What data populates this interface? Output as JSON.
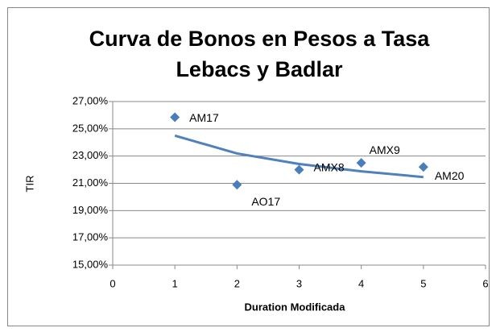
{
  "chart_data": {
    "type": "scatter",
    "title_lines": [
      "Curva de Bonos en Pesos a Tasa",
      "Lebacs y Badlar"
    ],
    "x_label": "Duration Modificada",
    "y_label": "TIR",
    "x": [
      1,
      2,
      3,
      4,
      5
    ],
    "values": [
      25.85,
      20.9,
      22.0,
      22.5,
      22.2
    ],
    "labels": [
      "AM17",
      "AO17",
      "AMX8",
      "AMX9",
      "AM20"
    ],
    "color": "#4a7ebb",
    "trendline": {
      "x": [
        1,
        2,
        3,
        4,
        5
      ],
      "values": [
        24.5,
        23.19,
        22.42,
        21.88,
        21.46
      ],
      "color": "#4f81bd"
    },
    "xlim": [
      0,
      6
    ],
    "xticks": [
      0,
      1,
      2,
      3,
      4,
      5,
      6
    ],
    "ylim": [
      15,
      27
    ],
    "yticks": [
      {
        "value": 15,
        "label": "15,00%"
      },
      {
        "value": 17,
        "label": "17,00%"
      },
      {
        "value": 19,
        "label": "19,00%"
      },
      {
        "value": 21,
        "label": "21,00%"
      },
      {
        "value": 23,
        "label": "23,00%"
      },
      {
        "value": 25,
        "label": "25,00%"
      },
      {
        "value": 27,
        "label": "27,00%"
      }
    ],
    "grid": true
  }
}
